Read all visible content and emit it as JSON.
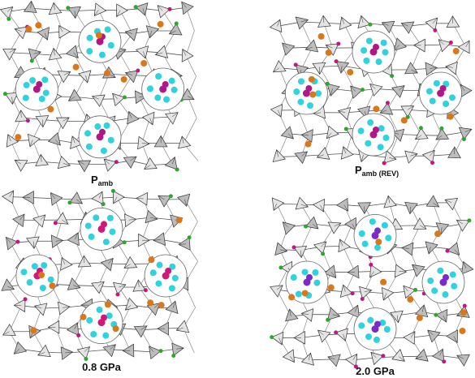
{
  "panels": [
    {
      "label": "P",
      "subscript": "amb"
    },
    {
      "label": "P",
      "subscript": "amb (REV)"
    },
    {
      "label": "0.8 GPa"
    },
    {
      "label": "2.0 GPa"
    }
  ]
}
